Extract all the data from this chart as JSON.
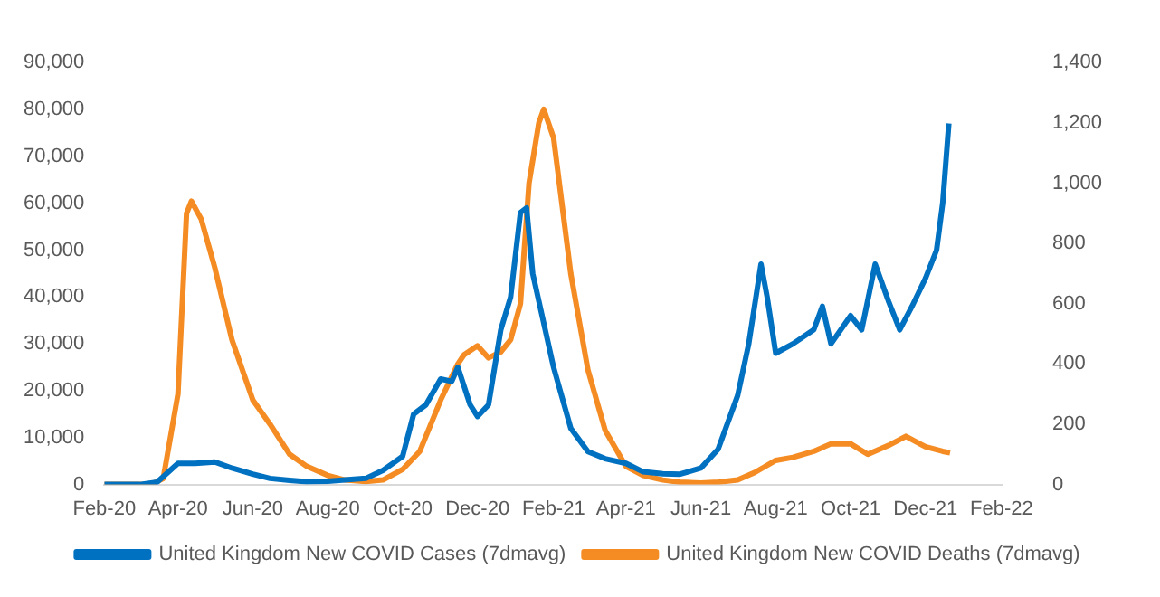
{
  "chart_data": {
    "type": "line",
    "xlim": [
      "2020-02-01",
      "2022-02-01"
    ],
    "xticks": [
      {
        "value": "2020-02-01",
        "label": "Feb-20"
      },
      {
        "value": "2020-04-01",
        "label": "Apr-20"
      },
      {
        "value": "2020-06-01",
        "label": "Jun-20"
      },
      {
        "value": "2020-08-01",
        "label": "Aug-20"
      },
      {
        "value": "2020-10-01",
        "label": "Oct-20"
      },
      {
        "value": "2020-12-01",
        "label": "Dec-20"
      },
      {
        "value": "2021-02-01",
        "label": "Feb-21"
      },
      {
        "value": "2021-04-01",
        "label": "Apr-21"
      },
      {
        "value": "2021-06-01",
        "label": "Jun-21"
      },
      {
        "value": "2021-08-01",
        "label": "Aug-21"
      },
      {
        "value": "2021-10-01",
        "label": "Oct-21"
      },
      {
        "value": "2021-12-01",
        "label": "Dec-21"
      },
      {
        "value": "2022-02-01",
        "label": "Feb-22"
      }
    ],
    "ylim": [
      0,
      90000
    ],
    "yticks": [
      {
        "value": 0,
        "label": "0"
      },
      {
        "value": 10000,
        "label": "10,000"
      },
      {
        "value": 20000,
        "label": "20,000"
      },
      {
        "value": 30000,
        "label": "30,000"
      },
      {
        "value": 40000,
        "label": "40,000"
      },
      {
        "value": 50000,
        "label": "50,000"
      },
      {
        "value": 60000,
        "label": "60,000"
      },
      {
        "value": 70000,
        "label": "70,000"
      },
      {
        "value": 80000,
        "label": "80,000"
      },
      {
        "value": 90000,
        "label": "90,000"
      }
    ],
    "y2lim": [
      0,
      1400
    ],
    "y2ticks": [
      {
        "value": 0,
        "label": "0"
      },
      {
        "value": 200,
        "label": "200"
      },
      {
        "value": 400,
        "label": "400"
      },
      {
        "value": 600,
        "label": "600"
      },
      {
        "value": 800,
        "label": "800"
      },
      {
        "value": 1000,
        "label": "1,000"
      },
      {
        "value": 1200,
        "label": "1,200"
      },
      {
        "value": 1400,
        "label": "1,400"
      }
    ],
    "grid": false,
    "legend": "bottom",
    "marker": "none",
    "line_style": "solid",
    "series": [
      {
        "name": "United Kingdom New COVID Cases (7dmavg)",
        "color": "#0070c0",
        "x": [
          "2020-02-01",
          "2020-03-01",
          "2020-03-15",
          "2020-04-01",
          "2020-04-15",
          "2020-05-01",
          "2020-05-15",
          "2020-06-01",
          "2020-06-15",
          "2020-07-01",
          "2020-07-15",
          "2020-08-01",
          "2020-08-15",
          "2020-09-01",
          "2020-09-15",
          "2020-10-01",
          "2020-10-10",
          "2020-10-20",
          "2020-11-01",
          "2020-11-10",
          "2020-11-15",
          "2020-11-25",
          "2020-12-01",
          "2020-12-10",
          "2020-12-20",
          "2020-12-28",
          "2021-01-05",
          "2021-01-10",
          "2021-01-15",
          "2021-02-01",
          "2021-02-15",
          "2021-03-01",
          "2021-03-15",
          "2021-04-01",
          "2021-04-15",
          "2021-05-01",
          "2021-05-15",
          "2021-06-01",
          "2021-06-15",
          "2021-07-01",
          "2021-07-10",
          "2021-07-20",
          "2021-07-25",
          "2021-08-01",
          "2021-08-15",
          "2021-09-01",
          "2021-09-08",
          "2021-09-15",
          "2021-10-01",
          "2021-10-10",
          "2021-10-21",
          "2021-11-01",
          "2021-11-10",
          "2021-11-20",
          "2021-12-01",
          "2021-12-10",
          "2021-12-15",
          "2021-12-20"
        ],
        "values": [
          0,
          0,
          500,
          4500,
          4500,
          4800,
          3500,
          2200,
          1300,
          900,
          600,
          700,
          1000,
          1300,
          3000,
          6000,
          15000,
          17000,
          22500,
          22000,
          25000,
          17000,
          14500,
          17000,
          33000,
          40000,
          58000,
          59000,
          45000,
          25000,
          12000,
          7000,
          5500,
          4500,
          2700,
          2300,
          2200,
          3500,
          7500,
          19000,
          30000,
          47000,
          40000,
          28000,
          30000,
          33000,
          38000,
          30000,
          36000,
          33000,
          47000,
          39000,
          33000,
          38000,
          44000,
          50000,
          60000,
          77000
        ]
      },
      {
        "name": "United Kingdom New COVID Deaths (7dmavg)",
        "color": "#f58b23",
        "axis": "y2",
        "x": [
          "2020-02-01",
          "2020-03-10",
          "2020-03-20",
          "2020-04-01",
          "2020-04-08",
          "2020-04-12",
          "2020-04-20",
          "2020-05-01",
          "2020-05-15",
          "2020-06-01",
          "2020-06-15",
          "2020-07-01",
          "2020-07-15",
          "2020-08-01",
          "2020-08-15",
          "2020-09-01",
          "2020-09-15",
          "2020-10-01",
          "2020-10-15",
          "2020-11-01",
          "2020-11-15",
          "2020-11-20",
          "2020-12-01",
          "2020-12-10",
          "2020-12-20",
          "2020-12-28",
          "2021-01-05",
          "2021-01-12",
          "2021-01-20",
          "2021-01-24",
          "2021-02-01",
          "2021-02-15",
          "2021-03-01",
          "2021-03-15",
          "2021-04-01",
          "2021-04-15",
          "2021-05-01",
          "2021-05-15",
          "2021-06-01",
          "2021-06-15",
          "2021-07-01",
          "2021-07-15",
          "2021-08-01",
          "2021-08-15",
          "2021-09-01",
          "2021-09-15",
          "2021-10-01",
          "2021-10-15",
          "2021-11-01",
          "2021-11-15",
          "2021-12-01",
          "2021-12-15",
          "2021-12-21"
        ],
        "values": [
          0,
          0,
          20,
          300,
          900,
          940,
          880,
          720,
          480,
          280,
          200,
          100,
          60,
          30,
          15,
          10,
          15,
          50,
          110,
          280,
          400,
          430,
          460,
          420,
          440,
          480,
          600,
          1000,
          1200,
          1245,
          1150,
          700,
          380,
          180,
          60,
          30,
          15,
          8,
          5,
          8,
          15,
          40,
          80,
          90,
          110,
          135,
          135,
          100,
          130,
          160,
          125,
          110,
          105
        ]
      }
    ]
  }
}
